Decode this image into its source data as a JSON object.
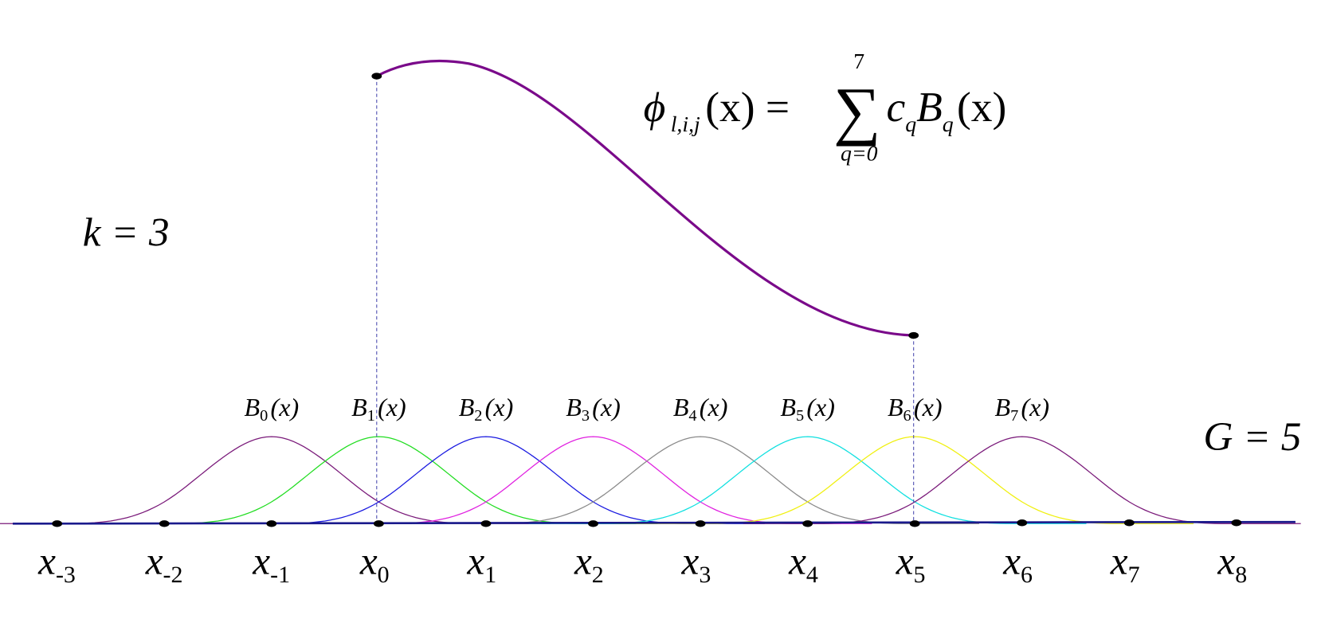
{
  "formula": {
    "phi": "ϕ",
    "phi_sub": "l,i,j",
    "lhs_rest": "(x) =",
    "sum": "∑",
    "upper": "7",
    "lower": "q=0",
    "c": "c",
    "c_sub": "q",
    "B": "B",
    "B_sub": "q",
    "rhs_rest": "(x)"
  },
  "k_label": "k = 3",
  "g_label": "G = 5",
  "basis": [
    {
      "symbol": "B",
      "sub": "0",
      "arg": "(x)"
    },
    {
      "symbol": "B",
      "sub": "1",
      "arg": "(x)"
    },
    {
      "symbol": "B",
      "sub": "2",
      "arg": "(x)"
    },
    {
      "symbol": "B",
      "sub": "3",
      "arg": "(x)"
    },
    {
      "symbol": "B",
      "sub": "4",
      "arg": "(x)"
    },
    {
      "symbol": "B",
      "sub": "5",
      "arg": "(x)"
    },
    {
      "symbol": "B",
      "sub": "6",
      "arg": "(x)"
    },
    {
      "symbol": "B",
      "sub": "7",
      "arg": "(x)"
    }
  ],
  "knots": [
    {
      "symbol": "x",
      "sub": "-3"
    },
    {
      "symbol": "x",
      "sub": "-2"
    },
    {
      "symbol": "x",
      "sub": "-1"
    },
    {
      "symbol": "x",
      "sub": "0"
    },
    {
      "symbol": "x",
      "sub": "1"
    },
    {
      "symbol": "x",
      "sub": "2"
    },
    {
      "symbol": "x",
      "sub": "3"
    },
    {
      "symbol": "x",
      "sub": "4"
    },
    {
      "symbol": "x",
      "sub": "5"
    },
    {
      "symbol": "x",
      "sub": "6"
    },
    {
      "symbol": "x",
      "sub": "7"
    },
    {
      "symbol": "x",
      "sub": "8"
    }
  ]
}
